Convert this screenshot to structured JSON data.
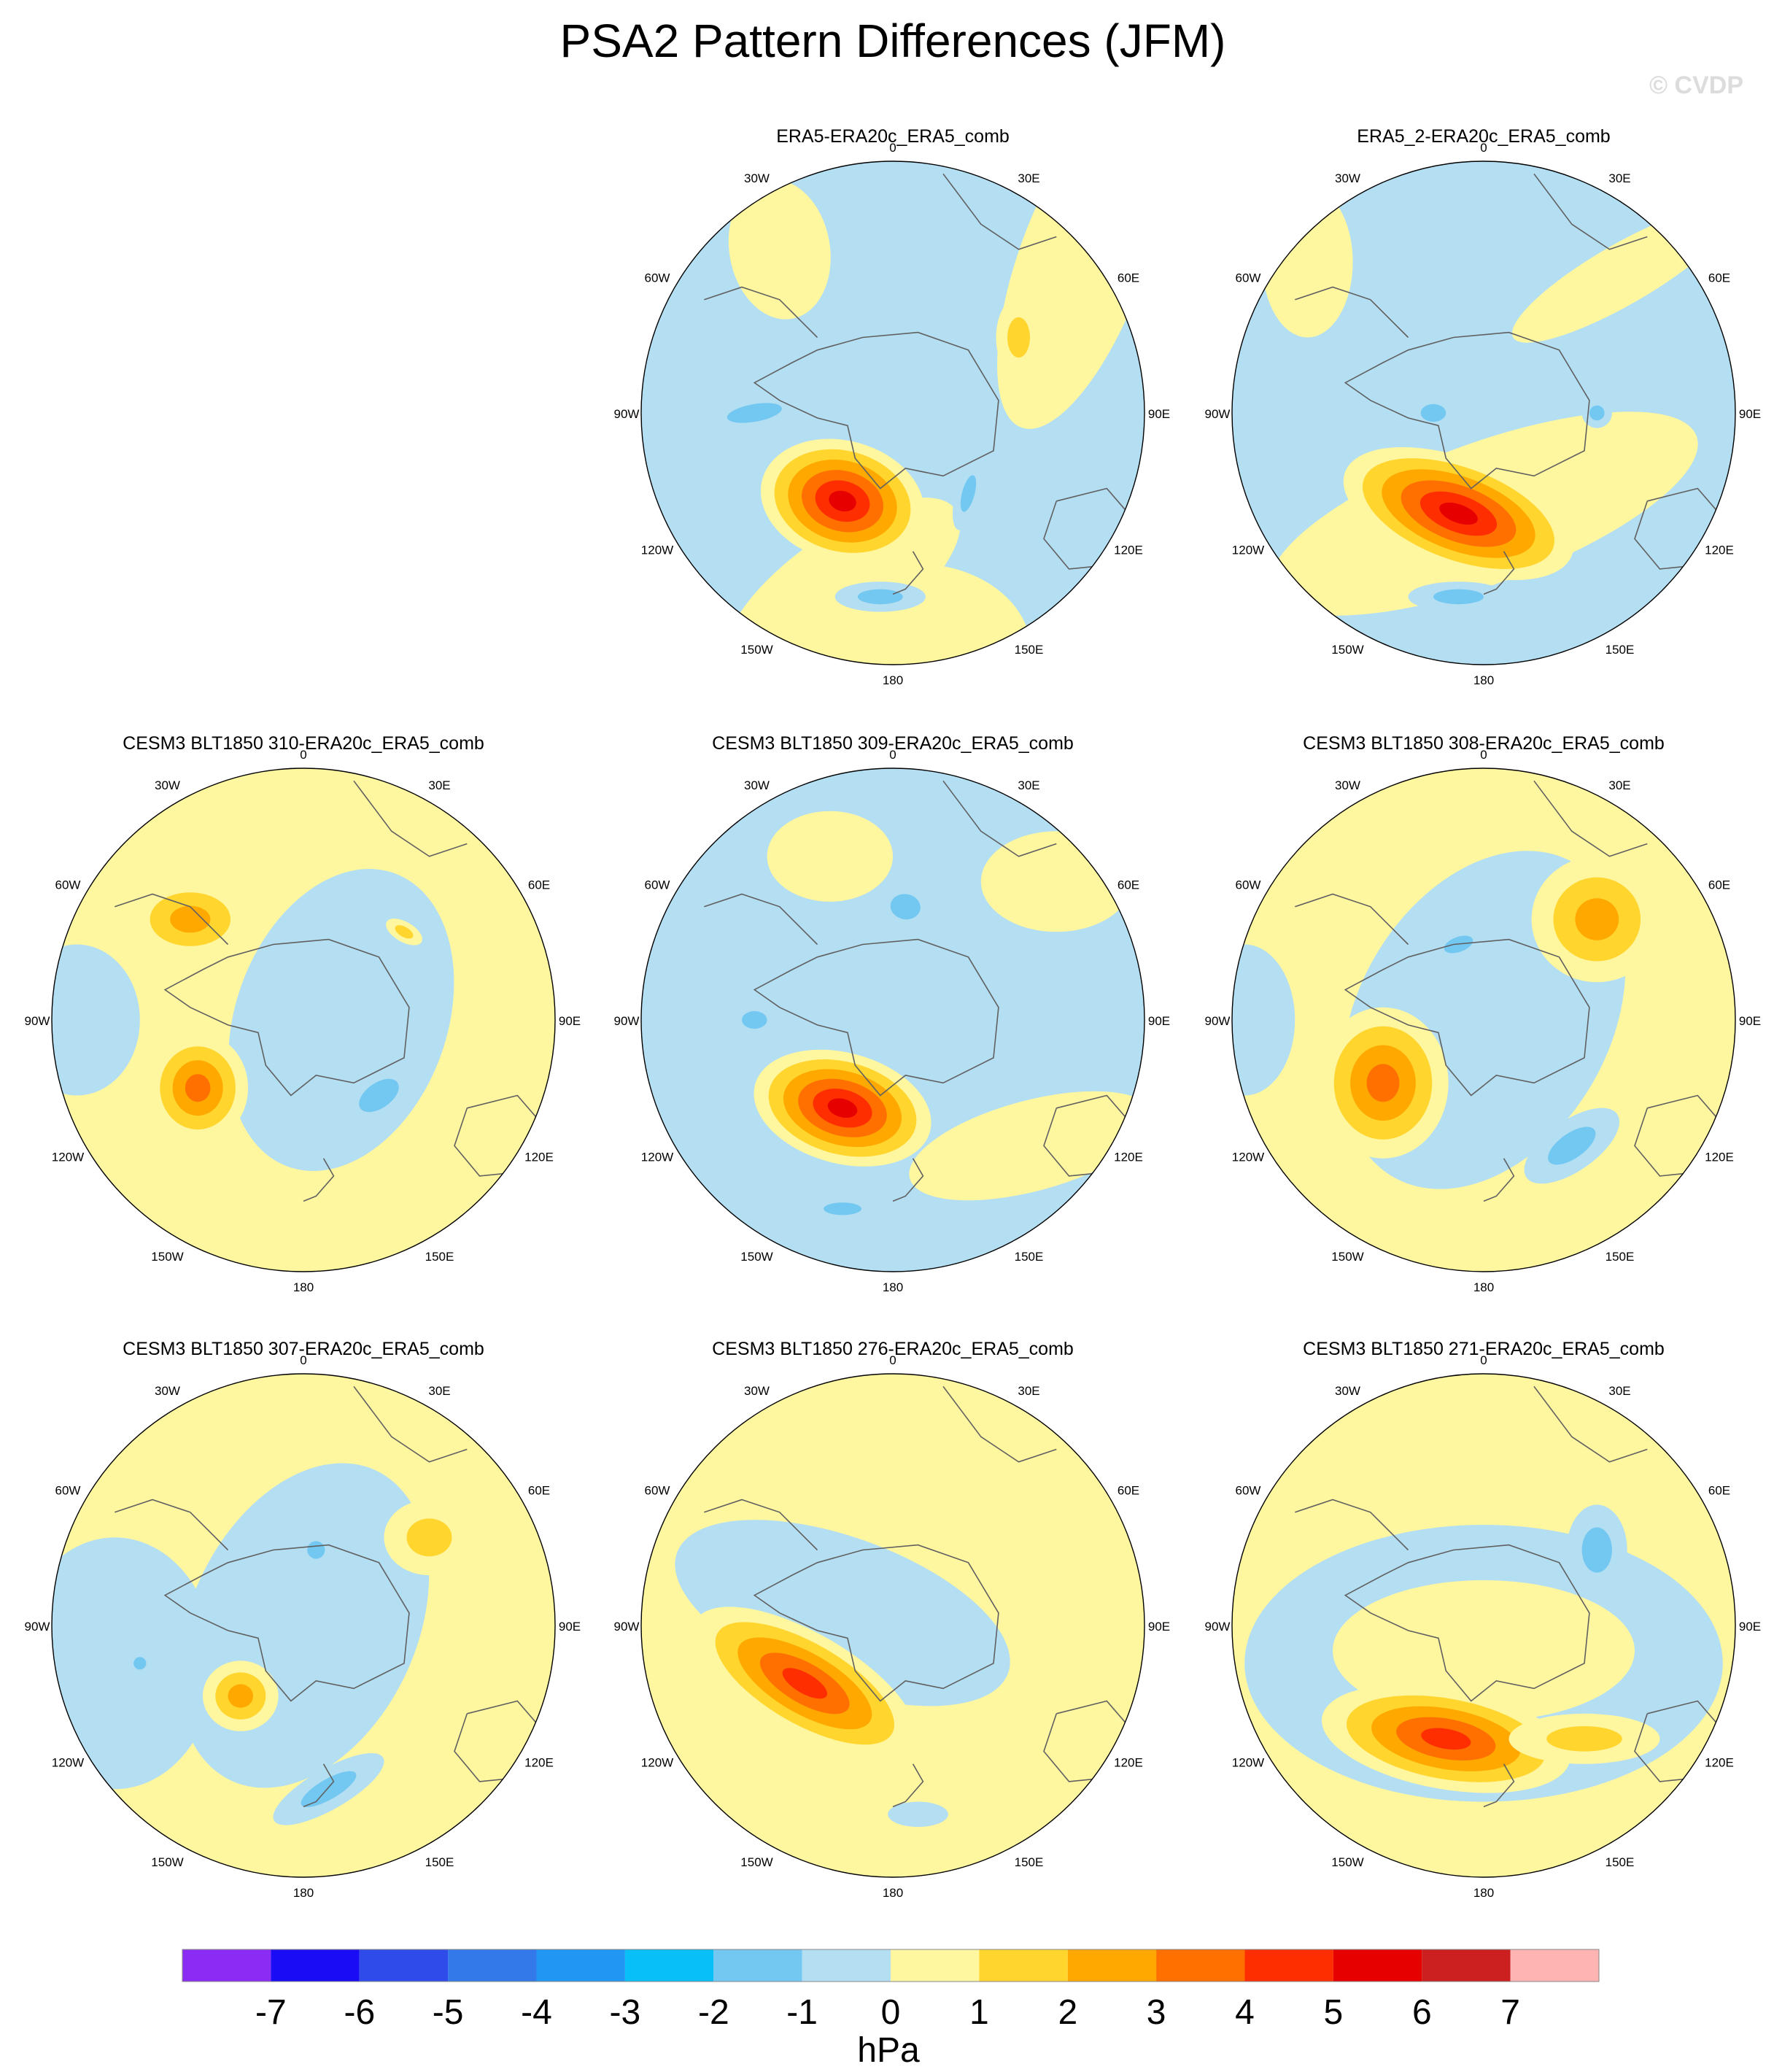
{
  "figure": {
    "title": "PSA2 Pattern Differences (JFM)",
    "watermark": "© CVDP",
    "unit": "hPa"
  },
  "lon_labels": [
    "0",
    "30E",
    "60E",
    "90E",
    "120E",
    "150E",
    "180",
    "150W",
    "120W",
    "90W",
    "60W",
    "30W"
  ],
  "colorbar": {
    "colors": [
      "#8b2cf5",
      "#1a0cf5",
      "#2f4ceb",
      "#3479ea",
      "#2196f3",
      "#09bff8",
      "#73c8f2",
      "#b4def2",
      "#fff6a0",
      "#ffd52e",
      "#ffa800",
      "#ff7000",
      "#ff2e00",
      "#e60000",
      "#cc1f1f",
      "#ffb4b4"
    ],
    "labels": [
      "-7",
      "-6",
      "-5",
      "-4",
      "-3",
      "-2",
      "-1",
      "0",
      "1",
      "2",
      "3",
      "4",
      "5",
      "6",
      "7"
    ]
  },
  "colors": {
    "neg2": "#73c8f2",
    "neg1": "#b4def2",
    "pos1": "#fff6a0",
    "pos2": "#ffd52e",
    "pos3": "#ffa800",
    "pos4": "#ff7000",
    "pos5": "#ff2e00",
    "pos6": "#e60000",
    "coast": "#606060"
  },
  "panels": [
    {
      "title": "ERA5-ERA20c_ERA5_comb",
      "base": "neg1",
      "features": [
        {
          "u": 0.1,
          "v": 0.95,
          "rx": 0.45,
          "ry": 0.35,
          "rot": 0,
          "levels": 1
        },
        {
          "u": -0.45,
          "v": -0.65,
          "rx": 0.2,
          "ry": 0.28,
          "rot": -10,
          "levels": 1
        },
        {
          "u": 0.75,
          "v": -0.6,
          "rx": 0.25,
          "ry": 0.7,
          "rot": 20,
          "levels": 1
        },
        {
          "u": -0.2,
          "v": 0.7,
          "rx": 0.55,
          "ry": 0.22,
          "rot": -35,
          "levels": 1
        },
        {
          "u": -0.2,
          "v": 0.35,
          "rx": 0.33,
          "ry": 0.24,
          "rot": 15,
          "levels": 6
        },
        {
          "u": 0.5,
          "v": -0.3,
          "rx": 0.09,
          "ry": 0.16,
          "rot": 0,
          "levels": 2
        },
        {
          "u": -0.55,
          "v": 0.0,
          "rx": 0.22,
          "ry": 0.07,
          "rot": -10,
          "levels": -2
        },
        {
          "u": 0.3,
          "v": 0.32,
          "rx": 0.05,
          "ry": 0.15,
          "rot": 15,
          "levels": -2
        },
        {
          "u": -0.05,
          "v": 0.73,
          "rx": 0.18,
          "ry": 0.06,
          "rot": 0,
          "levels": -2
        }
      ]
    },
    {
      "title": "ERA5_2-ERA20c_ERA5_comb",
      "base": "neg1",
      "features": [
        {
          "u": 0.0,
          "v": 0.4,
          "rx": 0.9,
          "ry": 0.28,
          "rot": -20,
          "levels": 1
        },
        {
          "u": 0.55,
          "v": -0.55,
          "rx": 0.5,
          "ry": 0.12,
          "rot": -30,
          "levels": 1
        },
        {
          "u": -0.7,
          "v": -0.6,
          "rx": 0.18,
          "ry": 0.3,
          "rot": 0,
          "levels": 1
        },
        {
          "u": -0.1,
          "v": 0.4,
          "rx": 0.48,
          "ry": 0.22,
          "rot": 20,
          "levels": 6
        },
        {
          "u": -0.1,
          "v": 0.73,
          "rx": 0.2,
          "ry": 0.06,
          "rot": 0,
          "levels": -2
        },
        {
          "u": -0.2,
          "v": 0.0,
          "rx": 0.1,
          "ry": 0.07,
          "rot": 0,
          "levels": -2
        },
        {
          "u": 0.45,
          "v": 0.0,
          "rx": 0.06,
          "ry": 0.06,
          "rot": 0,
          "levels": -2
        }
      ]
    },
    {
      "title": "CESM3 BLT1850 310-ERA20c_ERA5_comb",
      "base": "pos1",
      "features": [
        {
          "u": 0.15,
          "v": 0.0,
          "rx": 0.42,
          "ry": 0.62,
          "rot": 20,
          "levels": -1
        },
        {
          "u": -0.9,
          "v": 0.0,
          "rx": 0.25,
          "ry": 0.3,
          "rot": 0,
          "levels": -1
        },
        {
          "u": -0.45,
          "v": -0.4,
          "rx": 0.24,
          "ry": 0.16,
          "rot": 0,
          "levels": 3
        },
        {
          "u": -0.42,
          "v": 0.27,
          "rx": 0.2,
          "ry": 0.22,
          "rot": 0,
          "levels": 4
        },
        {
          "u": 0.3,
          "v": 0.3,
          "rx": 0.18,
          "ry": 0.1,
          "rot": -35,
          "levels": -2
        },
        {
          "u": 0.4,
          "v": -0.35,
          "rx": 0.08,
          "ry": 0.04,
          "rot": 30,
          "levels": 2
        }
      ]
    },
    {
      "title": "CESM3 BLT1850 309-ERA20c_ERA5_comb",
      "base": "neg1",
      "features": [
        {
          "u": 0.65,
          "v": -0.55,
          "rx": 0.3,
          "ry": 0.2,
          "rot": 0,
          "levels": 1
        },
        {
          "u": 0.55,
          "v": 0.5,
          "rx": 0.5,
          "ry": 0.18,
          "rot": -15,
          "levels": 1
        },
        {
          "u": -0.25,
          "v": -0.65,
          "rx": 0.25,
          "ry": 0.18,
          "rot": 0,
          "levels": 1
        },
        {
          "u": -0.2,
          "v": 0.35,
          "rx": 0.36,
          "ry": 0.22,
          "rot": 15,
          "levels": 6
        },
        {
          "u": 0.05,
          "v": -0.45,
          "rx": 0.12,
          "ry": 0.1,
          "rot": 10,
          "levels": -2
        },
        {
          "u": -0.55,
          "v": 0.0,
          "rx": 0.1,
          "ry": 0.07,
          "rot": 0,
          "levels": -2
        },
        {
          "u": -0.2,
          "v": 0.75,
          "rx": 0.15,
          "ry": 0.05,
          "rot": 0,
          "levels": -2
        }
      ]
    },
    {
      "title": "CESM3 BLT1850 308-ERA20c_ERA5_comb",
      "base": "pos1",
      "features": [
        {
          "u": 0.0,
          "v": 0.0,
          "rx": 0.5,
          "ry": 0.72,
          "rot": 30,
          "levels": -1
        },
        {
          "u": -0.95,
          "v": 0.0,
          "rx": 0.2,
          "ry": 0.3,
          "rot": 0,
          "levels": -1
        },
        {
          "u": 0.45,
          "v": -0.4,
          "rx": 0.26,
          "ry": 0.25,
          "rot": 0,
          "levels": 3
        },
        {
          "u": -0.4,
          "v": 0.25,
          "rx": 0.26,
          "ry": 0.3,
          "rot": 0,
          "levels": 4
        },
        {
          "u": 0.35,
          "v": 0.5,
          "rx": 0.22,
          "ry": 0.1,
          "rot": -35,
          "levels": -2
        },
        {
          "u": -0.1,
          "v": -0.3,
          "rx": 0.12,
          "ry": 0.06,
          "rot": -20,
          "levels": -2
        }
      ]
    },
    {
      "title": "CESM3 BLT1850 307-ERA20c_ERA5_comb",
      "base": "pos1",
      "features": [
        {
          "u": 0.0,
          "v": 0.0,
          "rx": 0.45,
          "ry": 0.68,
          "rot": 25,
          "levels": -1
        },
        {
          "u": -0.75,
          "v": 0.15,
          "rx": 0.4,
          "ry": 0.5,
          "rot": 0,
          "levels": -1
        },
        {
          "u": 0.5,
          "v": -0.35,
          "rx": 0.18,
          "ry": 0.15,
          "rot": 0,
          "levels": 2
        },
        {
          "u": -0.25,
          "v": 0.28,
          "rx": 0.15,
          "ry": 0.14,
          "rot": 0,
          "levels": 3
        },
        {
          "u": 0.1,
          "v": 0.65,
          "rx": 0.25,
          "ry": 0.08,
          "rot": -30,
          "levels": -2
        },
        {
          "u": -0.65,
          "v": 0.15,
          "rx": 0.05,
          "ry": 0.05,
          "rot": 0,
          "levels": -2
        },
        {
          "u": 0.05,
          "v": -0.3,
          "rx": 0.07,
          "ry": 0.07,
          "rot": 0,
          "levels": -2
        }
      ]
    },
    {
      "title": "CESM3 BLT1850 276-ERA20c_ERA5_comb",
      "base": "pos1",
      "features": [
        {
          "u": -0.2,
          "v": -0.05,
          "rx": 0.7,
          "ry": 0.3,
          "rot": 20,
          "levels": -1
        },
        {
          "u": -0.35,
          "v": 0.23,
          "rx": 0.5,
          "ry": 0.2,
          "rot": 30,
          "levels": 5
        },
        {
          "u": 0.1,
          "v": 0.75,
          "rx": 0.12,
          "ry": 0.05,
          "rot": 0,
          "levels": -1
        }
      ]
    },
    {
      "title": "CESM3 BLT1850 271-ERA20c_ERA5_comb",
      "base": "pos1",
      "features": [
        {
          "u": 0.0,
          "v": 0.15,
          "rx": 0.95,
          "ry": 0.55,
          "rot": 0,
          "levels": -1
        },
        {
          "u": 0.0,
          "v": 0.1,
          "rx": 0.6,
          "ry": 0.28,
          "rot": 0,
          "levels": 1
        },
        {
          "u": -0.15,
          "v": 0.45,
          "rx": 0.5,
          "ry": 0.2,
          "rot": 10,
          "levels": 5
        },
        {
          "u": 0.4,
          "v": 0.45,
          "rx": 0.3,
          "ry": 0.1,
          "rot": 0,
          "levels": 2
        },
        {
          "u": 0.45,
          "v": -0.3,
          "rx": 0.12,
          "ry": 0.18,
          "rot": 0,
          "levels": -2
        }
      ]
    }
  ]
}
